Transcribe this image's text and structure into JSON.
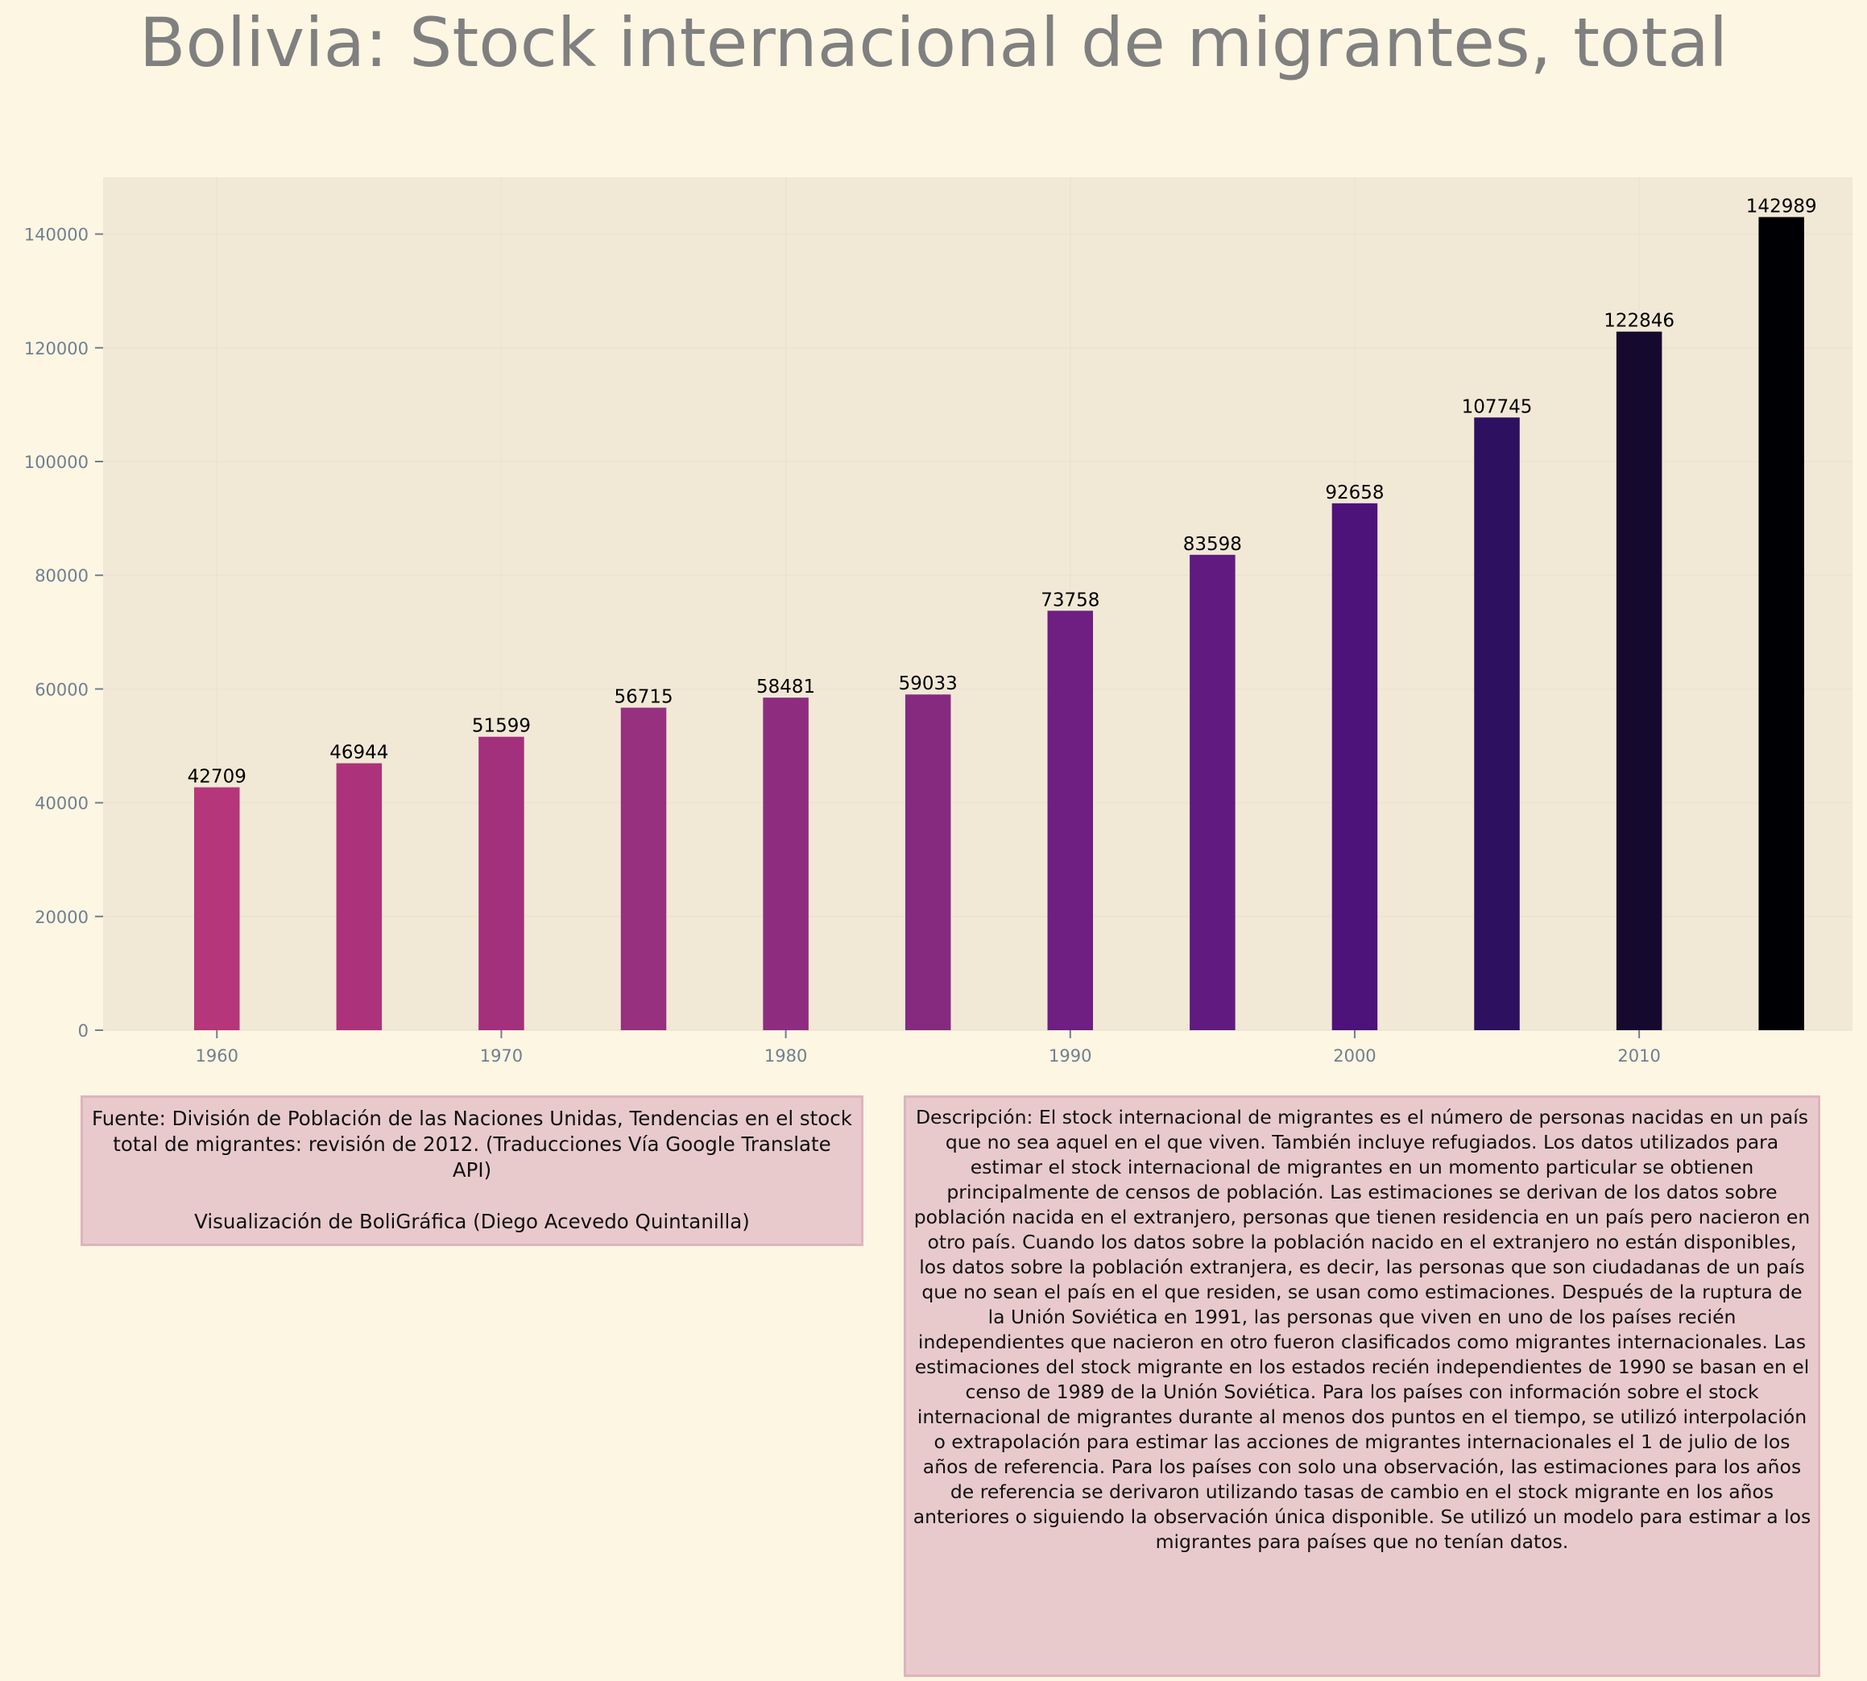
{
  "chart_data": {
    "type": "bar",
    "title": "Bolivia:  Stock internacional de migrantes, total",
    "xlabel": "",
    "ylabel": "",
    "x": [
      1960,
      1965,
      1970,
      1975,
      1980,
      1985,
      1990,
      1995,
      2000,
      2005,
      2010,
      2015
    ],
    "values": [
      42709,
      46944,
      51599,
      56715,
      58481,
      59033,
      73758,
      83598,
      92658,
      107745,
      122846,
      142989
    ],
    "data_labels": [
      "42709",
      "46944",
      "51599",
      "56715",
      "58481",
      "59033",
      "73758",
      "83598",
      "92658",
      "107745",
      "122846",
      "142989"
    ],
    "xlim": [
      1956,
      2017.5
    ],
    "ylim": [
      0,
      150000
    ],
    "x_ticks": [
      "1960",
      "1970",
      "1980",
      "1990",
      "2000",
      "2010"
    ],
    "y_ticks": [
      "0",
      "20000",
      "40000",
      "60000",
      "80000",
      "100000",
      "120000",
      "140000"
    ],
    "grid": true,
    "colors": [
      "#b5367a",
      "#ac337b",
      "#a2307d",
      "#97307e",
      "#8e2d7f",
      "#862a7f",
      "#6e1f81",
      "#611a7f",
      "#4e127b",
      "#2d1060",
      "#15092f",
      "#000004"
    ]
  },
  "colors": {
    "background": "#fdf6e3",
    "plot_background": "#f1e9d6",
    "box_fill": "#e8cacd",
    "box_border": "#dfb3bd"
  },
  "source": {
    "text": "Fuente: División de Población de las Naciones Unidas, Tendencias en el stock total de migrantes: revisión de 2012. (Traducciones Vía Google Translate API)",
    "credit": "Visualización de BoliGráfica (Diego Acevedo Quintanilla)"
  },
  "description": {
    "text": "Descripción: El stock internacional de migrantes es el número de personas nacidas en un país que no sea aquel en el que viven. También incluye refugiados. Los datos utilizados para estimar el stock internacional de migrantes en un momento particular se obtienen principalmente de censos de población. Las estimaciones se derivan de los datos sobre población nacida en el extranjero, personas que tienen residencia en un país pero nacieron en otro país. Cuando los datos sobre la población nacido en el extranjero no están disponibles, los datos sobre la población extranjera, es decir, las personas que son ciudadanas de un país que no sean el país en el que residen, se usan como estimaciones. Después de la ruptura de la Unión Soviética en 1991, las personas que viven en uno de los países recién independientes que nacieron en otro fueron clasificados como migrantes internacionales. Las estimaciones del stock migrante en los estados recién independientes de 1990 se basan en el censo de 1989 de la Unión Soviética. Para los países con información sobre el stock internacional de migrantes durante al menos dos puntos en el tiempo, se utilizó interpolación o extrapolación para estimar las acciones de migrantes internacionales el 1 de julio de los años de referencia. Para los países con solo una observación, las estimaciones para los años de referencia se derivaron utilizando tasas de cambio en el stock migrante en los años anteriores o siguiendo la observación única disponible. Se utilizó un modelo para estimar a los migrantes para países que no tenían datos."
  }
}
